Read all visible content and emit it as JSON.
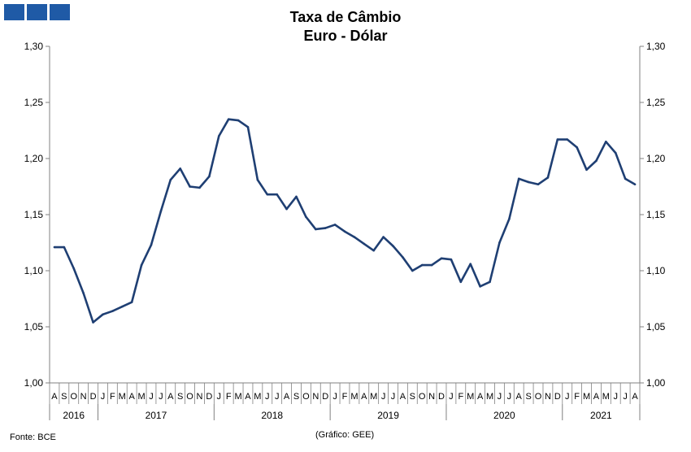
{
  "logo": {
    "icon": "three-blue-squares-logo",
    "color": "#1f5aa6"
  },
  "title_line1": "Taxa de Câmbio",
  "title_line2": "Euro - Dólar",
  "source": "Fonte: BCE",
  "credit": "(Gráfico: GEE)",
  "chart_data": {
    "type": "line",
    "title": "Taxa de Câmbio Euro - Dólar",
    "ylim": [
      1.0,
      1.3
    ],
    "yticks": [
      "1,00",
      "1,05",
      "1,10",
      "1,15",
      "1,20",
      "1,25",
      "1,30"
    ],
    "yaxis_both_sides": true,
    "grid": false,
    "line_color": "#1f3f73",
    "month_labels": [
      "A",
      "S",
      "O",
      "N",
      "D",
      "J",
      "F",
      "M",
      "A",
      "M",
      "J",
      "J",
      "A",
      "S",
      "O",
      "N",
      "D",
      "J",
      "F",
      "M",
      "A",
      "M",
      "J",
      "J",
      "A",
      "S",
      "O",
      "N",
      "D",
      "J",
      "F",
      "M",
      "A",
      "M",
      "J",
      "J",
      "A",
      "S",
      "O",
      "N",
      "D",
      "J",
      "F",
      "M",
      "A",
      "M",
      "J",
      "J",
      "A",
      "S",
      "O",
      "N",
      "D",
      "J",
      "F",
      "M",
      "A",
      "M",
      "J",
      "J",
      "A"
    ],
    "years": [
      {
        "label": "2016",
        "months": 5
      },
      {
        "label": "2017",
        "months": 12
      },
      {
        "label": "2018",
        "months": 12
      },
      {
        "label": "2019",
        "months": 12
      },
      {
        "label": "2020",
        "months": 12
      },
      {
        "label": "2021",
        "months": 8
      }
    ],
    "values": [
      1.121,
      1.121,
      1.102,
      1.08,
      1.054,
      1.061,
      1.064,
      1.068,
      1.072,
      1.105,
      1.123,
      1.153,
      1.181,
      1.191,
      1.175,
      1.174,
      1.184,
      1.22,
      1.235,
      1.234,
      1.228,
      1.181,
      1.168,
      1.168,
      1.155,
      1.166,
      1.148,
      1.137,
      1.138,
      1.141,
      1.135,
      1.13,
      1.124,
      1.118,
      1.13,
      1.122,
      1.112,
      1.1,
      1.105,
      1.105,
      1.111,
      1.11,
      1.09,
      1.106,
      1.086,
      1.09,
      1.125,
      1.146,
      1.182,
      1.179,
      1.177,
      1.183,
      1.217,
      1.217,
      1.21,
      1.19,
      1.198,
      1.215,
      1.205,
      1.182,
      1.177
    ]
  }
}
